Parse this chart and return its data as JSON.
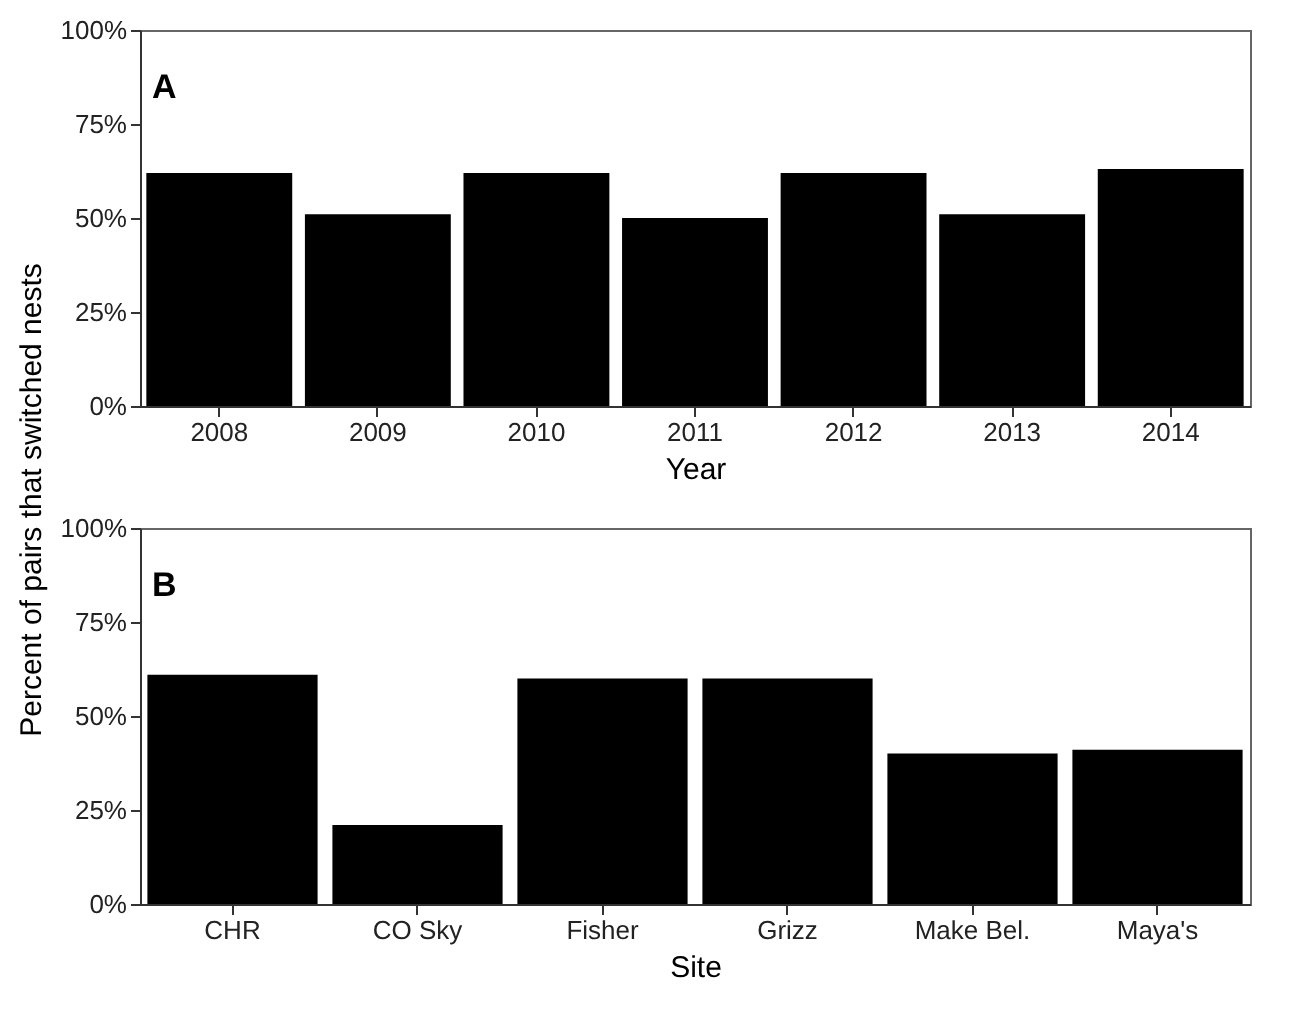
{
  "chart_data": [
    {
      "type": "bar",
      "title": "A",
      "xlabel": "Year",
      "ylabel": "Percent of pairs that switched nests",
      "categories": [
        "2008",
        "2009",
        "2010",
        "2011",
        "2012",
        "2013",
        "2014"
      ],
      "values": [
        62,
        51,
        62,
        50,
        62,
        51,
        63
      ],
      "color": "#000000",
      "ylim": [
        0,
        100
      ],
      "yticks": [
        {
          "value": 0,
          "label": "0%"
        },
        {
          "value": 25,
          "label": "25%"
        },
        {
          "value": 50,
          "label": "50%"
        },
        {
          "value": 75,
          "label": "75%"
        },
        {
          "value": 100,
          "label": "100%"
        }
      ]
    },
    {
      "type": "bar",
      "title": "B",
      "xlabel": "Site",
      "categories": [
        "CHR",
        "CO Sky",
        "Fisher",
        "Grizz",
        "Make Bel.",
        "Maya's"
      ],
      "values": [
        61,
        21,
        60,
        60,
        40,
        41
      ],
      "color": "#000000",
      "ylim": [
        0,
        100
      ],
      "yticks": [
        {
          "value": 0,
          "label": "0%"
        },
        {
          "value": 25,
          "label": "25%"
        },
        {
          "value": 50,
          "label": "50%"
        },
        {
          "value": 75,
          "label": "75%"
        },
        {
          "value": 100,
          "label": "100%"
        }
      ]
    }
  ]
}
